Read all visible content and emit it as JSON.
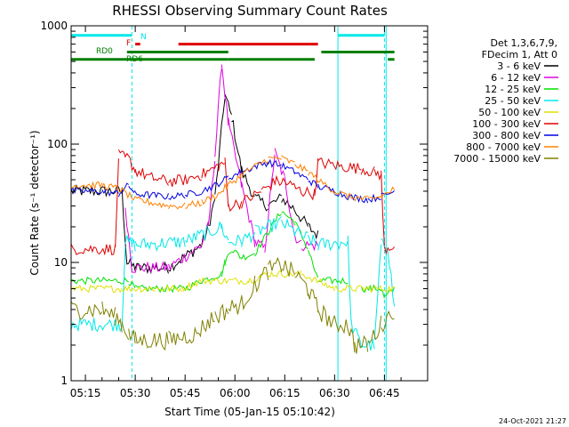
{
  "chart_data": {
    "type": "line",
    "title": "RHESSI Observing Summary Count Rates",
    "xlabel": "Start Time (05-Jan-15 05:10:42)",
    "ylabel": "Count Rate (s⁻¹ detector⁻¹)",
    "y_scale": "log",
    "ylim": [
      1,
      1000
    ],
    "xlim_minutes": [
      310.7,
      418
    ],
    "grid": false,
    "x_ticks": [
      {
        "label": "05:15",
        "minutes": 315
      },
      {
        "label": "05:30",
        "minutes": 330
      },
      {
        "label": "05:45",
        "minutes": 345
      },
      {
        "label": "06:00",
        "minutes": 360
      },
      {
        "label": "06:15",
        "minutes": 375
      },
      {
        "label": "06:30",
        "minutes": 390
      },
      {
        "label": "06:45",
        "minutes": 405
      }
    ],
    "y_ticks": [
      {
        "label": "1",
        "value": 1
      },
      {
        "label": "10",
        "value": 10
      },
      {
        "label": "100",
        "value": 100
      },
      {
        "label": "1000",
        "value": 1000
      }
    ],
    "legend": {
      "placement": "right",
      "header": [
        "Det 1,3,6,7,9,",
        "FDecim 1, Att 0"
      ]
    },
    "series": [
      {
        "name": "3 - 6 keV",
        "color": "#000000",
        "noise": 0.05,
        "points": [
          [
            310.7,
            40
          ],
          [
            326,
            40
          ],
          [
            327.5,
            10
          ],
          [
            330,
            9
          ],
          [
            340,
            9
          ],
          [
            350,
            14
          ],
          [
            352,
            20
          ],
          [
            354,
            35
          ],
          [
            357,
            260
          ],
          [
            359,
            170
          ],
          [
            362,
            60
          ],
          [
            366,
            35
          ],
          [
            370,
            30
          ],
          [
            374,
            35
          ],
          [
            378,
            28
          ],
          [
            382,
            20
          ],
          [
            385,
            17
          ],
          [
            390,
            null
          ]
        ]
      },
      {
        "name": "6 - 12 keV",
        "color": "#e000e0",
        "noise": 0.05,
        "points": [
          [
            327,
            30
          ],
          [
            329,
            9
          ],
          [
            340,
            9
          ],
          [
            350,
            14
          ],
          [
            352,
            20
          ],
          [
            354,
            80
          ],
          [
            356,
            480
          ],
          [
            358,
            150
          ],
          [
            362,
            45
          ],
          [
            366,
            15
          ],
          [
            369,
            13
          ],
          [
            372,
            85
          ],
          [
            375,
            50
          ],
          [
            378,
            17
          ],
          [
            380,
            14
          ],
          [
            385,
            14
          ],
          [
            386,
            null
          ]
        ]
      },
      {
        "name": "12 - 25 keV",
        "color": "#00e000",
        "noise": 0.03,
        "points": [
          [
            310.7,
            7
          ],
          [
            328,
            7
          ],
          [
            330,
            6
          ],
          [
            345,
            6
          ],
          [
            350,
            7
          ],
          [
            356,
            8
          ],
          [
            357,
            10
          ],
          [
            359,
            13
          ],
          [
            362,
            11
          ],
          [
            366,
            12
          ],
          [
            370,
            18
          ],
          [
            374,
            27
          ],
          [
            378,
            22
          ],
          [
            382,
            13
          ],
          [
            385,
            7
          ],
          [
            394,
            7
          ],
          [
            395,
            null
          ],
          [
            398,
            6
          ],
          [
            404,
            6
          ],
          [
            405,
            5
          ],
          [
            408,
            6
          ]
        ]
      },
      {
        "name": "25 - 50 keV",
        "color": "#00e8e8",
        "noise": 0.06,
        "points": [
          [
            310.7,
            3
          ],
          [
            326,
            3
          ],
          [
            327,
            15
          ],
          [
            330,
            14
          ],
          [
            345,
            15
          ],
          [
            352,
            18
          ],
          [
            356,
            20
          ],
          [
            358,
            15
          ],
          [
            362,
            15
          ],
          [
            366,
            18
          ],
          [
            370,
            20
          ],
          [
            374,
            22
          ],
          [
            378,
            18
          ],
          [
            382,
            16
          ],
          [
            385,
            14
          ],
          [
            394,
            15
          ],
          [
            395,
            3
          ],
          [
            398,
            2
          ],
          [
            402,
            2
          ],
          [
            404,
            14
          ],
          [
            406,
            14
          ],
          [
            408,
            4
          ]
        ]
      },
      {
        "name": "50 - 100 keV",
        "color": "#e0e000",
        "noise": 0.03,
        "points": [
          [
            310.7,
            6
          ],
          [
            326,
            6
          ],
          [
            336,
            6
          ],
          [
            344,
            6
          ],
          [
            350,
            7
          ],
          [
            358,
            7
          ],
          [
            364,
            7
          ],
          [
            370,
            8
          ],
          [
            380,
            8
          ],
          [
            390,
            6
          ],
          [
            400,
            6
          ],
          [
            408,
            6
          ]
        ]
      },
      {
        "name": "100 - 300 keV",
        "color": "#e00000",
        "noise": 0.05,
        "points": [
          [
            310.7,
            13
          ],
          [
            324,
            13
          ],
          [
            325,
            80
          ],
          [
            328,
            75
          ],
          [
            330,
            60
          ],
          [
            335,
            52
          ],
          [
            340,
            48
          ],
          [
            345,
            50
          ],
          [
            350,
            55
          ],
          [
            355,
            65
          ],
          [
            357,
            70
          ],
          [
            358,
            30
          ],
          [
            362,
            32
          ],
          [
            368,
            40
          ],
          [
            372,
            48
          ],
          [
            375,
            48
          ],
          [
            380,
            40
          ],
          [
            384,
            38
          ],
          [
            385,
            70
          ],
          [
            392,
            65
          ],
          [
            398,
            62
          ],
          [
            402,
            58
          ],
          [
            404,
            55
          ],
          [
            405,
            13
          ],
          [
            408,
            14
          ]
        ]
      },
      {
        "name": "300 - 800 keV",
        "color": "#0000e0",
        "noise": 0.03,
        "points": [
          [
            310.7,
            40
          ],
          [
            320,
            40
          ],
          [
            325,
            38
          ],
          [
            328,
            45
          ],
          [
            330,
            38
          ],
          [
            340,
            36
          ],
          [
            345,
            37
          ],
          [
            350,
            40
          ],
          [
            354,
            45
          ],
          [
            358,
            52
          ],
          [
            362,
            58
          ],
          [
            366,
            65
          ],
          [
            370,
            70
          ],
          [
            374,
            66
          ],
          [
            378,
            58
          ],
          [
            382,
            50
          ],
          [
            385,
            44
          ],
          [
            390,
            40
          ],
          [
            394,
            36
          ],
          [
            400,
            34
          ],
          [
            404,
            36
          ],
          [
            408,
            40
          ]
        ]
      },
      {
        "name": "800 - 7000 keV",
        "color": "#ff8000",
        "noise": 0.03,
        "points": [
          [
            310.7,
            45
          ],
          [
            320,
            45
          ],
          [
            325,
            42
          ],
          [
            330,
            34
          ],
          [
            340,
            30
          ],
          [
            345,
            30
          ],
          [
            350,
            32
          ],
          [
            355,
            38
          ],
          [
            358,
            45
          ],
          [
            362,
            55
          ],
          [
            366,
            65
          ],
          [
            370,
            75
          ],
          [
            374,
            76
          ],
          [
            378,
            68
          ],
          [
            382,
            58
          ],
          [
            386,
            48
          ],
          [
            390,
            40
          ],
          [
            394,
            36
          ],
          [
            400,
            34
          ],
          [
            404,
            36
          ],
          [
            408,
            42
          ]
        ]
      },
      {
        "name": "7000 - 15000 keV",
        "color": "#808000",
        "noise": 0.08,
        "points": [
          [
            310.7,
            4
          ],
          [
            320,
            4
          ],
          [
            324,
            3.5
          ],
          [
            326,
            3
          ],
          [
            328,
            2.5
          ],
          [
            330,
            2.2
          ],
          [
            340,
            2.2
          ],
          [
            348,
            2.5
          ],
          [
            354,
            3.5
          ],
          [
            358,
            4
          ],
          [
            362,
            4.5
          ],
          [
            366,
            6.5
          ],
          [
            370,
            8.5
          ],
          [
            374,
            9.5
          ],
          [
            378,
            8
          ],
          [
            382,
            6
          ],
          [
            385,
            4
          ],
          [
            390,
            3
          ],
          [
            394,
            3
          ],
          [
            396,
            2
          ],
          [
            400,
            2
          ],
          [
            404,
            3
          ],
          [
            408,
            4
          ]
        ]
      }
    ],
    "attenuator_markers": [
      {
        "label": "N",
        "color": "#00e8e8",
        "level": 830,
        "segments": [
          [
            310.7,
            329
          ],
          [
            391,
            405
          ]
        ]
      },
      {
        "label": "F",
        "color": "#e00000",
        "level": 700,
        "segments": [
          [
            330,
            331.5
          ],
          [
            343,
            385
          ]
        ]
      },
      {
        "label": "RD0",
        "color": "#008000",
        "level": 600,
        "segments": [
          [
            327.5,
            358
          ],
          [
            386,
            408
          ]
        ]
      },
      {
        "label": "RD6",
        "color": "#008000",
        "level": 520,
        "segments": [
          [
            310.7,
            358
          ],
          [
            358,
            384
          ],
          [
            406,
            408
          ]
        ]
      }
    ],
    "vertical_lines": [
      {
        "minutes": 329,
        "style": "dashed",
        "color": "#00e8e8"
      },
      {
        "minutes": 391,
        "style": "solid",
        "color": "#00e8e8"
      },
      {
        "minutes": 405,
        "style": "dashed",
        "color": "#00e8e8"
      },
      {
        "minutes": 405.5,
        "style": "solid",
        "color": "#00e8e8"
      }
    ]
  },
  "footer": {
    "timestamp": "24-Oct-2021 21:27"
  }
}
